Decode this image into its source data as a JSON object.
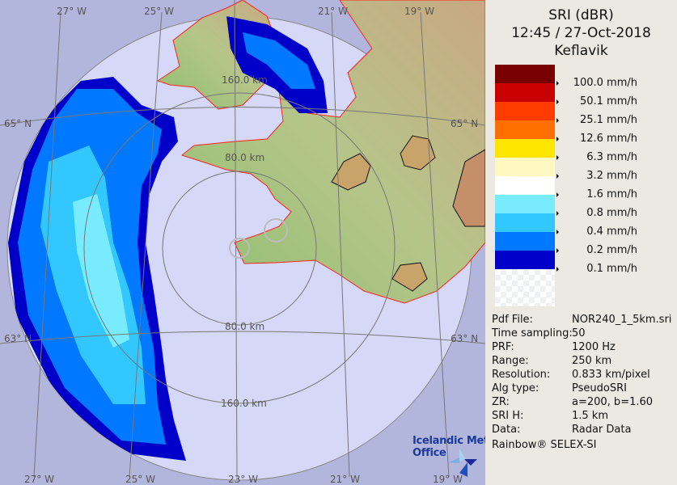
{
  "header": {
    "product": "SRI (dBR)",
    "datetime": "12:45 / 27-Oct-2018",
    "site": "Keflavik"
  },
  "legend": [
    {
      "color": "#780000",
      "label": "100.0 mm/h"
    },
    {
      "color": "#c80000",
      "label": "50.1 mm/h"
    },
    {
      "color": "#ff3c00",
      "label": "25.1 mm/h"
    },
    {
      "color": "#ff6e00",
      "label": "12.6 mm/h"
    },
    {
      "color": "#ffe600",
      "label": "6.3 mm/h"
    },
    {
      "color": "#fff8c0",
      "label": "3.2 mm/h"
    },
    {
      "color": "#ffffff",
      "label": "1.6 mm/h"
    },
    {
      "color": "#78ebff",
      "label": "0.8 mm/h"
    },
    {
      "color": "#32c8ff",
      "label": "0.4 mm/h"
    },
    {
      "color": "#0078ff",
      "label": "0.2 mm/h"
    },
    {
      "color": "#0000c8",
      "label": "0.1 mm/h"
    }
  ],
  "info": [
    {
      "key": "Pdf File:",
      "value": "NOR240_1_5km.sri"
    },
    {
      "key": "Time sampling:",
      "value": "50"
    },
    {
      "key": "PRF:",
      "value": "1200 Hz"
    },
    {
      "key": "Range:",
      "value": "250 km"
    },
    {
      "key": "Resolution:",
      "value": "0.833 km/pixel"
    },
    {
      "key": "Alg type:",
      "value": "PseudoSRI"
    },
    {
      "key": "ZR:",
      "value": "a=200, b=1.60"
    },
    {
      "key": "SRI H:",
      "value": "1.5 km"
    },
    {
      "key": "Data:",
      "value": "Radar Data"
    }
  ],
  "credit": "Rainbow® SELEX-SI",
  "map": {
    "lon_top": [
      "27° W",
      "25° W",
      "21° W",
      "19° W"
    ],
    "lon_bottom": [
      "27° W",
      "25° W",
      "23° W",
      "21° W",
      "19° W"
    ],
    "lat_left": [
      "65° N",
      "63° N"
    ],
    "lat_right": [
      "65° N",
      "63° N"
    ],
    "range_rings": [
      "160.0 km",
      "80.0 km",
      "80.0 km",
      "160.0 km"
    ],
    "logo": [
      "Icelandic Met",
      "Office"
    ],
    "colors": {
      "outside": "#b2b6dc",
      "inside": "#d5d9f7",
      "coast": "#ff2020",
      "land": "#9cbf7a"
    }
  }
}
